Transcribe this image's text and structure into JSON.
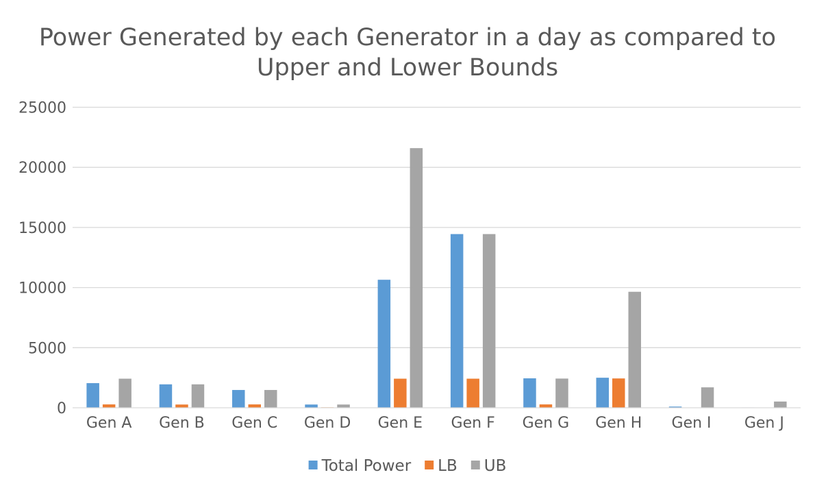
{
  "chart_data": {
    "type": "bar",
    "title_lines": [
      "Power Generated by each Generator in a day as compared to",
      "Upper and Lower Bounds"
    ],
    "xlabel": "",
    "ylabel": "",
    "categories": [
      "Gen A",
      "Gen B",
      "Gen C",
      "Gen D",
      "Gen E",
      "Gen F",
      "Gen G",
      "Gen H",
      "Gen I",
      "Gen J"
    ],
    "series": [
      {
        "name": "Total Power",
        "color": "#5b9bd5",
        "values": [
          2050,
          1950,
          1480,
          270,
          10650,
          14450,
          2450,
          2500,
          100,
          30
        ]
      },
      {
        "name": "LB",
        "color": "#ed7d31",
        "values": [
          280,
          270,
          280,
          40,
          2420,
          2420,
          280,
          2440,
          10,
          5
        ]
      },
      {
        "name": "UB",
        "color": "#a5a5a5",
        "values": [
          2420,
          1950,
          1480,
          270,
          21600,
          14450,
          2430,
          9650,
          1700,
          520
        ]
      }
    ],
    "ylim": [
      0,
      25000
    ],
    "yticks": [
      "0",
      "5000",
      "10000",
      "15000",
      "20000",
      "25000"
    ],
    "grid": true,
    "legend_position": "bottom"
  }
}
